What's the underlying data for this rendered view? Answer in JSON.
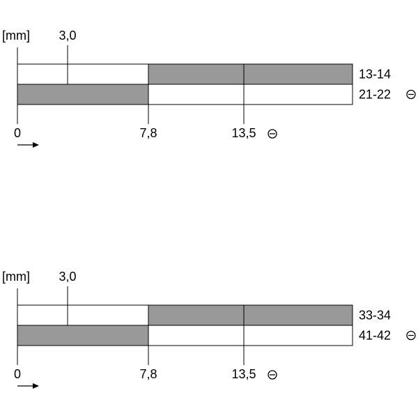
{
  "diagrams": [
    {
      "unit": "[mm]",
      "top_marks": [
        "3,0"
      ],
      "bottom_marks": [
        "0",
        "7,8",
        "13,5"
      ],
      "rows": [
        {
          "label": "13-14"
        },
        {
          "label": "21-22"
        }
      ]
    },
    {
      "unit": "[mm]",
      "top_marks": [
        "3,0"
      ],
      "bottom_marks": [
        "0",
        "7,8",
        "13,5"
      ],
      "rows": [
        {
          "label": "33-34"
        },
        {
          "label": "41-42"
        }
      ]
    }
  ]
}
